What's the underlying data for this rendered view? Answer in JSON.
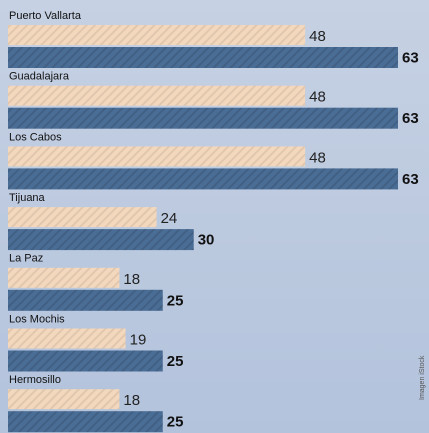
{
  "chart_data": {
    "type": "bar",
    "orientation": "horizontal",
    "categories": [
      "Puerto Vallarta",
      "Guadalajara",
      "Los Cabos",
      "Tijuana",
      "La Paz",
      "Los Mochis",
      "Hermosillo"
    ],
    "series": [
      {
        "color": "#f3d8bd",
        "values": [
          48,
          48,
          48,
          24,
          18,
          19,
          18
        ]
      },
      {
        "color": "#4a6d96",
        "values": [
          63,
          63,
          63,
          30,
          25,
          25,
          25
        ]
      }
    ],
    "credit": "Imagen iStock"
  }
}
